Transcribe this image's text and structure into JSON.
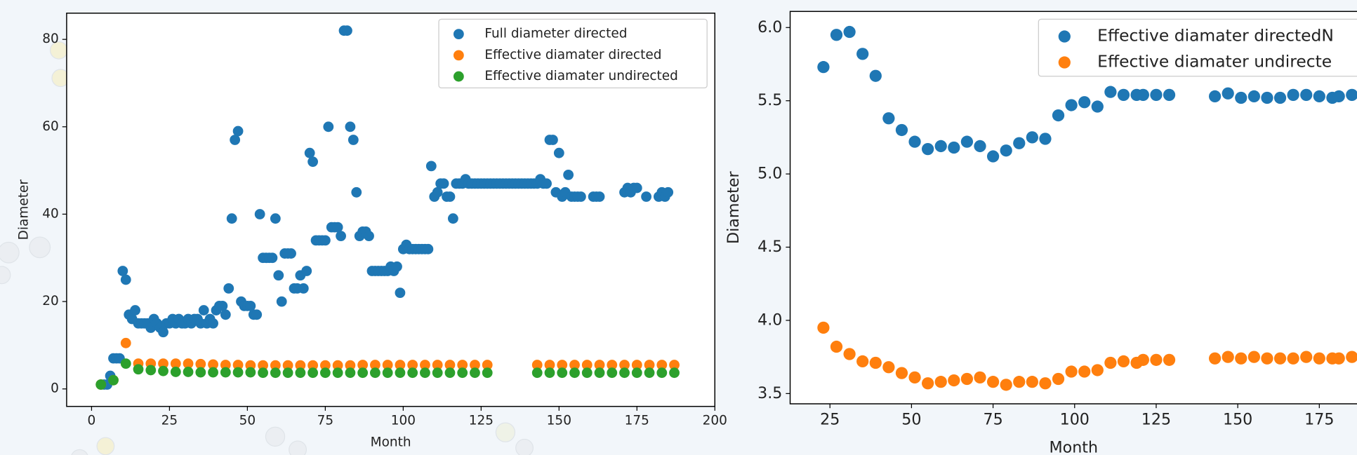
{
  "chart_data": [
    {
      "type": "scatter",
      "xlabel": "Month",
      "ylabel": "Diameter",
      "xlim": [
        -8,
        200
      ],
      "ylim": [
        -4,
        86
      ],
      "xticks": [
        0,
        25,
        50,
        75,
        100,
        125,
        150,
        175,
        200
      ],
      "yticks": [
        0,
        20,
        40,
        60,
        80
      ],
      "legend": "upper right",
      "series": [
        {
          "name": "Full diameter directed",
          "color": "#1f77b4",
          "x": [
            3,
            4,
            5,
            6,
            7,
            8,
            9,
            10,
            11,
            12,
            13,
            14,
            15,
            16,
            17,
            18,
            19,
            20,
            21,
            22,
            23,
            24,
            25,
            26,
            27,
            28,
            29,
            30,
            31,
            32,
            33,
            34,
            35,
            36,
            37,
            38,
            39,
            40,
            41,
            42,
            43,
            44,
            45,
            46,
            47,
            48,
            49,
            50,
            51,
            52,
            53,
            54,
            55,
            56,
            57,
            58,
            59,
            60,
            61,
            62,
            63,
            64,
            65,
            66,
            67,
            68,
            69,
            70,
            71,
            72,
            73,
            74,
            75,
            76,
            77,
            78,
            79,
            80,
            81,
            82,
            83,
            84,
            85,
            86,
            87,
            88,
            89,
            90,
            91,
            92,
            93,
            94,
            95,
            96,
            97,
            98,
            99,
            100,
            101,
            102,
            103,
            104,
            105,
            106,
            107,
            108,
            109,
            110,
            111,
            112,
            113,
            114,
            115,
            116,
            117,
            118,
            119,
            120,
            121,
            122,
            123,
            124,
            125,
            126,
            127,
            128,
            129,
            130,
            131,
            132,
            133,
            134,
            135,
            136,
            137,
            138,
            139,
            140,
            141,
            142,
            143,
            144,
            145,
            146,
            147,
            148,
            149,
            150,
            151,
            152,
            153,
            154,
            155,
            156,
            157,
            161,
            162,
            163,
            171,
            172,
            173,
            174,
            175,
            178,
            182,
            183,
            184,
            185
          ],
          "values": [
            1,
            1,
            1,
            3,
            7,
            7,
            7,
            27,
            25,
            17,
            16,
            18,
            15,
            15,
            15,
            15,
            14,
            16,
            15,
            14,
            13,
            15,
            15,
            16,
            15,
            16,
            15,
            15,
            16,
            15,
            16,
            16,
            15,
            18,
            15,
            16,
            15,
            18,
            19,
            19,
            17,
            23,
            39,
            57,
            59,
            20,
            19,
            19,
            19,
            17,
            17,
            40,
            30,
            30,
            30,
            30,
            39,
            26,
            20,
            31,
            31,
            31,
            23,
            23,
            26,
            23,
            27,
            54,
            52,
            34,
            34,
            34,
            34,
            60,
            37,
            37,
            37,
            35,
            82,
            82,
            60,
            57,
            45,
            35,
            36,
            36,
            35,
            27,
            27,
            27,
            27,
            27,
            27,
            28,
            27,
            28,
            22,
            32,
            33,
            32,
            32,
            32,
            32,
            32,
            32,
            32,
            51,
            44,
            45,
            47,
            47,
            44,
            44,
            39,
            47,
            47,
            47,
            48,
            47,
            47,
            47,
            47,
            47,
            47,
            47,
            47,
            47,
            47,
            47,
            47,
            47,
            47,
            47,
            47,
            47,
            47,
            47,
            47,
            47,
            47,
            47,
            48,
            47,
            47,
            57,
            57,
            45,
            54,
            44,
            45,
            49,
            44,
            44,
            44,
            44,
            44,
            44,
            44,
            45,
            46,
            45,
            46,
            46,
            44,
            44,
            45,
            44,
            45
          ]
        },
        {
          "name": "Effective diamater directed",
          "color": "#ff7f0e",
          "x": [
            3,
            7,
            11,
            15,
            19,
            23,
            27,
            31,
            35,
            39,
            43,
            47,
            51,
            55,
            59,
            63,
            67,
            71,
            75,
            79,
            83,
            87,
            91,
            95,
            99,
            103,
            107,
            111,
            115,
            119,
            123,
            127,
            143,
            147,
            151,
            155,
            159,
            163,
            167,
            171,
            175,
            179,
            183,
            187
          ],
          "values": [
            1,
            2,
            10.5,
            5.8,
            5.8,
            5.8,
            5.8,
            5.8,
            5.7,
            5.6,
            5.5,
            5.5,
            5.4,
            5.4,
            5.4,
            5.4,
            5.4,
            5.4,
            5.4,
            5.4,
            5.4,
            5.5,
            5.5,
            5.5,
            5.5,
            5.5,
            5.5,
            5.5,
            5.5,
            5.5,
            5.5,
            5.5,
            5.5,
            5.5,
            5.5,
            5.5,
            5.5,
            5.5,
            5.5,
            5.5,
            5.5,
            5.5,
            5.5,
            5.5
          ]
        },
        {
          "name": "Effective diamater undirected",
          "color": "#2ca02c",
          "x": [
            3,
            7,
            11,
            15,
            19,
            23,
            27,
            31,
            35,
            39,
            43,
            47,
            51,
            55,
            59,
            63,
            67,
            71,
            75,
            79,
            83,
            87,
            91,
            95,
            99,
            103,
            107,
            111,
            115,
            119,
            123,
            127,
            143,
            147,
            151,
            155,
            159,
            163,
            167,
            171,
            175,
            179,
            183,
            187
          ],
          "values": [
            1,
            2,
            5.8,
            4.5,
            4.3,
            4.1,
            3.9,
            3.9,
            3.8,
            3.8,
            3.8,
            3.8,
            3.8,
            3.7,
            3.7,
            3.7,
            3.7,
            3.7,
            3.7,
            3.7,
            3.7,
            3.7,
            3.7,
            3.7,
            3.7,
            3.7,
            3.7,
            3.7,
            3.7,
            3.7,
            3.7,
            3.7,
            3.7,
            3.7,
            3.7,
            3.7,
            3.7,
            3.7,
            3.7,
            3.7,
            3.7,
            3.7,
            3.7,
            3.7
          ]
        }
      ]
    },
    {
      "type": "scatter",
      "xlabel": "Month",
      "ylabel": "Diameter",
      "xlim": [
        12.8,
        190
      ],
      "ylim": [
        3.43,
        6.11
      ],
      "xticks": [
        25,
        50,
        75,
        100,
        125,
        150,
        175
      ],
      "yticks": [
        3.5,
        {
          "value": 4,
          "label": "4.0"
        },
        4.5,
        {
          "value": 5,
          "label": "5.0"
        },
        5.5,
        {
          "value": 6,
          "label": "6.0"
        }
      ],
      "legend": "upper right",
      "series": [
        {
          "name": "Effective diamater directedN",
          "color": "#1f77b4",
          "x": [
            23,
            27,
            31,
            35,
            39,
            43,
            47,
            51,
            55,
            59,
            63,
            67,
            71,
            75,
            79,
            83,
            87,
            91,
            95,
            99,
            103,
            107,
            111,
            115,
            119,
            121,
            125,
            129,
            143,
            147,
            151,
            155,
            159,
            163,
            167,
            171,
            175,
            179,
            181,
            185
          ],
          "values": [
            5.73,
            5.95,
            5.97,
            5.82,
            5.67,
            5.38,
            5.3,
            5.22,
            5.17,
            5.19,
            5.18,
            5.22,
            5.19,
            5.12,
            5.16,
            5.21,
            5.25,
            5.24,
            5.4,
            5.47,
            5.49,
            5.46,
            5.56,
            5.54,
            5.54,
            5.54,
            5.54,
            5.54,
            5.53,
            5.55,
            5.52,
            5.53,
            5.52,
            5.52,
            5.54,
            5.54,
            5.53,
            5.52,
            5.53,
            5.54
          ]
        },
        {
          "name": "Effective diamater undirecte",
          "color": "#ff7f0e",
          "x": [
            23,
            27,
            31,
            35,
            39,
            43,
            47,
            51,
            55,
            59,
            63,
            67,
            71,
            75,
            79,
            83,
            87,
            91,
            95,
            99,
            103,
            107,
            111,
            115,
            119,
            121,
            125,
            129,
            143,
            147,
            151,
            155,
            159,
            163,
            167,
            171,
            175,
            179,
            181,
            185
          ],
          "values": [
            3.95,
            3.82,
            3.77,
            3.72,
            3.71,
            3.68,
            3.64,
            3.61,
            3.57,
            3.58,
            3.59,
            3.6,
            3.61,
            3.58,
            3.56,
            3.58,
            3.58,
            3.57,
            3.6,
            3.65,
            3.65,
            3.66,
            3.71,
            3.72,
            3.71,
            3.73,
            3.73,
            3.73,
            3.74,
            3.75,
            3.74,
            3.75,
            3.74,
            3.74,
            3.74,
            3.75,
            3.74,
            3.74,
            3.74,
            3.75
          ]
        }
      ]
    }
  ]
}
